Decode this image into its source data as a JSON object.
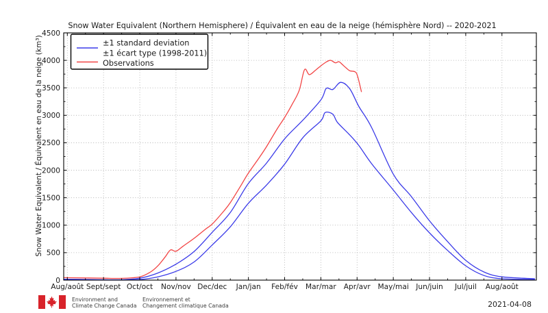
{
  "chart_data": {
    "type": "line",
    "title": "Snow Water Equivalent (Northern Hemisphere) / Équivalent en eau de la neige (hémisphère Nord) -- 2020-2021",
    "ylabel": "Snow Water Equivalent / Équivalent en eau de la neige (km³)",
    "xlabel": "",
    "ylim": [
      0,
      4500
    ],
    "y_ticks": [
      0,
      500,
      1000,
      1500,
      2000,
      2500,
      3000,
      3500,
      4000,
      4500
    ],
    "y_minor_step": 250,
    "x_tick_labels": [
      "Aug/août",
      "Sept/sept",
      "Oct/oct",
      "Nov/nov",
      "Dec/dec",
      "Jan/jan",
      "Feb/fév",
      "Mar/mar",
      "Apr/avr",
      "May/mai",
      "Jun/juin",
      "Jul/juil",
      "Aug/août"
    ],
    "x_unit": "months since Aug 1 (0 = Aug 1 2020, 12 = Aug 1 2021)",
    "x_range_months": [
      -0.1,
      12.95
    ],
    "grid": true,
    "legend_position": "upper left",
    "legend": {
      "std_label_line1": "±1 standard deviation",
      "std_label_line2": "±1 écart type (1998-2011)",
      "observations_label": "Observations"
    },
    "colors": {
      "std_band": "#3a3ae8",
      "observations": "#f24444"
    },
    "series": [
      {
        "name": "climatology mean +1 std dev (1998-2011)",
        "color_key": "std_band",
        "points": [
          [
            -0.1,
            18
          ],
          [
            0.5,
            12
          ],
          [
            1,
            8
          ],
          [
            1.5,
            8
          ],
          [
            2,
            35
          ],
          [
            2.5,
            130
          ],
          [
            3,
            290
          ],
          [
            3.5,
            520
          ],
          [
            4,
            870
          ],
          [
            4.5,
            1230
          ],
          [
            5,
            1760
          ],
          [
            5.5,
            2130
          ],
          [
            6,
            2570
          ],
          [
            6.5,
            2910
          ],
          [
            7,
            3280
          ],
          [
            7.15,
            3490
          ],
          [
            7.33,
            3470
          ],
          [
            7.55,
            3600
          ],
          [
            7.8,
            3480
          ],
          [
            8.05,
            3160
          ],
          [
            8.4,
            2780
          ],
          [
            9,
            1930
          ],
          [
            9.5,
            1520
          ],
          [
            10,
            1080
          ],
          [
            10.5,
            700
          ],
          [
            11,
            360
          ],
          [
            11.5,
            150
          ],
          [
            12,
            60
          ],
          [
            12.9,
            25
          ]
        ]
      },
      {
        "name": "climatology mean -1 std dev (1998-2011)",
        "color_key": "std_band",
        "points": [
          [
            -0.1,
            5
          ],
          [
            0.5,
            3
          ],
          [
            1,
            2
          ],
          [
            1.5,
            2
          ],
          [
            2,
            10
          ],
          [
            2.5,
            60
          ],
          [
            3,
            160
          ],
          [
            3.5,
            330
          ],
          [
            4,
            640
          ],
          [
            4.5,
            970
          ],
          [
            5,
            1400
          ],
          [
            5.5,
            1730
          ],
          [
            6,
            2110
          ],
          [
            6.5,
            2590
          ],
          [
            7,
            2900
          ],
          [
            7.12,
            3050
          ],
          [
            7.33,
            3020
          ],
          [
            7.46,
            2870
          ],
          [
            7.8,
            2640
          ],
          [
            8.05,
            2450
          ],
          [
            8.4,
            2120
          ],
          [
            9,
            1640
          ],
          [
            9.5,
            1230
          ],
          [
            10,
            860
          ],
          [
            10.5,
            540
          ],
          [
            11,
            260
          ],
          [
            11.5,
            85
          ],
          [
            12,
            25
          ],
          [
            12.9,
            12
          ]
        ]
      },
      {
        "name": "Observations 2020-2021",
        "color_key": "observations",
        "points": [
          [
            -0.1,
            45
          ],
          [
            0.5,
            40
          ],
          [
            1,
            35
          ],
          [
            1.5,
            33
          ],
          [
            2,
            60
          ],
          [
            2.3,
            150
          ],
          [
            2.5,
            260
          ],
          [
            2.7,
            420
          ],
          [
            2.85,
            550
          ],
          [
            3,
            525
          ],
          [
            3.2,
            620
          ],
          [
            3.5,
            760
          ],
          [
            3.8,
            920
          ],
          [
            4,
            1020
          ],
          [
            4.3,
            1240
          ],
          [
            4.5,
            1410
          ],
          [
            4.8,
            1730
          ],
          [
            5,
            1950
          ],
          [
            5.3,
            2230
          ],
          [
            5.5,
            2430
          ],
          [
            5.8,
            2760
          ],
          [
            6,
            2960
          ],
          [
            6.2,
            3190
          ],
          [
            6.4,
            3450
          ],
          [
            6.55,
            3830
          ],
          [
            6.68,
            3740
          ],
          [
            6.85,
            3820
          ],
          [
            7,
            3900
          ],
          [
            7.15,
            3970
          ],
          [
            7.27,
            4000
          ],
          [
            7.4,
            3955
          ],
          [
            7.5,
            3975
          ],
          [
            7.6,
            3920
          ],
          [
            7.7,
            3860
          ],
          [
            7.8,
            3810
          ],
          [
            7.95,
            3790
          ],
          [
            8.02,
            3700
          ],
          [
            8.12,
            3430
          ]
        ]
      }
    ]
  },
  "footer": {
    "logo": "canada-flag",
    "dept_en": [
      "Environment and",
      "Climate Change Canada"
    ],
    "dept_fr": [
      "Environnement et",
      "Changement climatique Canada"
    ],
    "date": "2021-04-08"
  }
}
